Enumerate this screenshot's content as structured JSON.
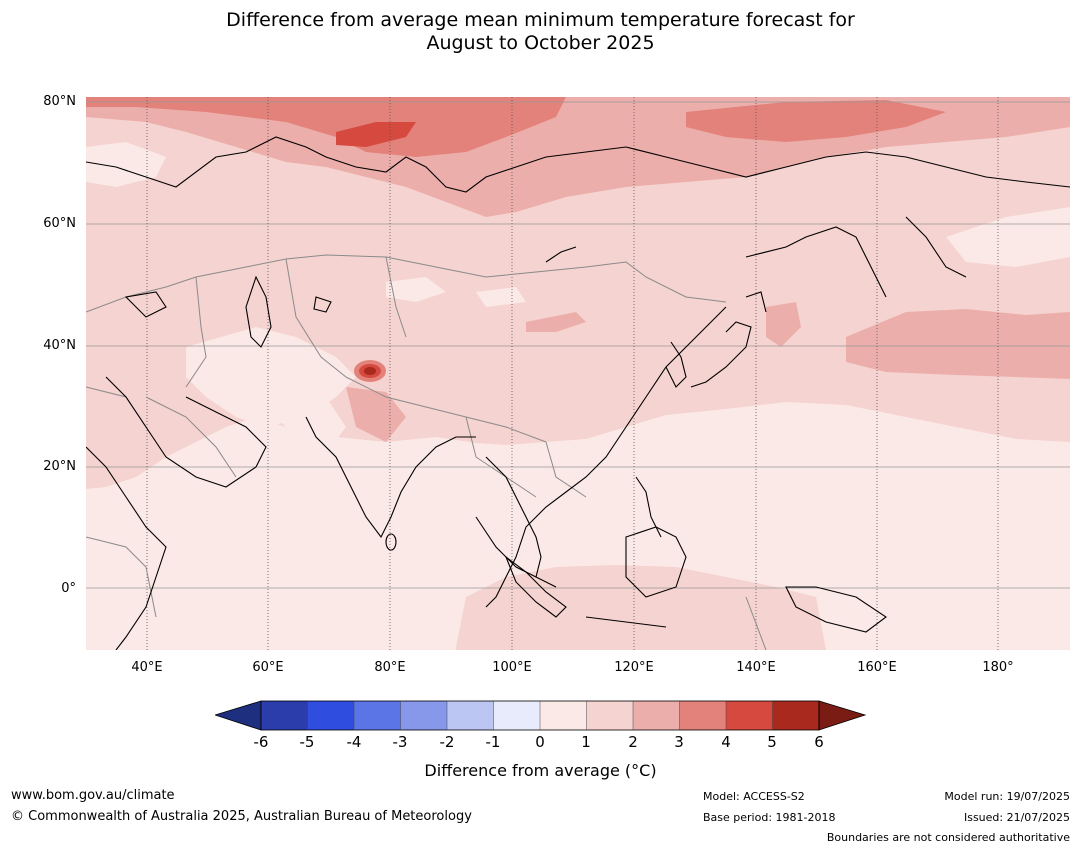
{
  "header": {
    "title_line1": "Difference from average mean minimum temperature forecast for",
    "title_line2": "August to October 2025"
  },
  "map": {
    "lat_labels": [
      "80°N",
      "60°N",
      "40°N",
      "20°N",
      "0°"
    ],
    "lon_labels": [
      "40°E",
      "60°E",
      "80°E",
      "100°E",
      "120°E",
      "140°E",
      "160°E",
      "180°"
    ],
    "colors": {
      "c0_1": "#fbe9e7",
      "c1_2": "#f5d3d0",
      "c2_3": "#ecaeaa",
      "c3_4": "#e3827a",
      "c4_5": "#d6493f",
      "c5_6": "#a9291f",
      "coast": "#000000",
      "border": "#8a8a8a",
      "grid": "#999999"
    }
  },
  "colorbar": {
    "ticks": [
      "-6",
      "-5",
      "-4",
      "-3",
      "-2",
      "-1",
      "0",
      "1",
      "2",
      "3",
      "4",
      "5",
      "6"
    ],
    "colors": [
      "#1e2f80",
      "#2a3daa",
      "#2f4ee0",
      "#5b74e6",
      "#8797ea",
      "#bcc6f3",
      "#e8ebfb",
      "#fbe9e7",
      "#f5d3d0",
      "#ecaeaa",
      "#e3827a",
      "#d6493f",
      "#a9291f",
      "#7a1b14"
    ],
    "label": "Difference from average (°C)"
  },
  "footer": {
    "website": "www.bom.gov.au/climate",
    "copyright": "© Commonwealth of Australia 2025, Australian Bureau of Meteorology",
    "model": "Model: ACCESS-S2",
    "base_period": "Base period: 1981-2018",
    "model_run": "Model run: 19/07/2025",
    "issued": "Issued: 21/07/2025",
    "disclaimer": "Boundaries are not considered authoritative"
  }
}
